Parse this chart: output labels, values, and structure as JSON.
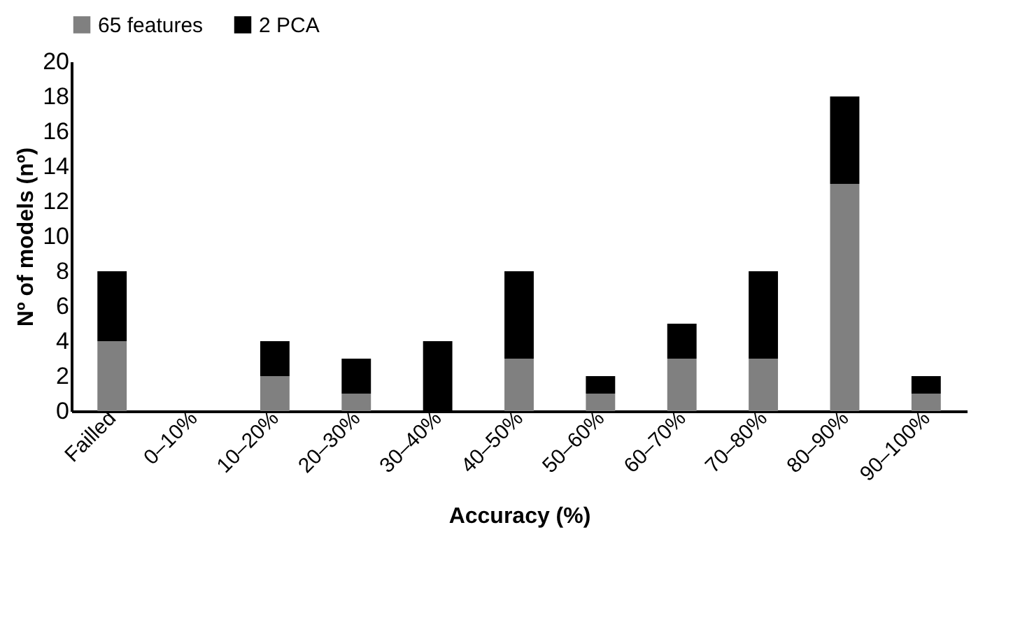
{
  "chart_data": {
    "type": "bar",
    "stacked": true,
    "xlabel": "Accuracy (%)",
    "ylabel": "Nº of models (nº)",
    "categories": [
      "Failled",
      "0–10%",
      "10–20%",
      "20–30%",
      "30–40%",
      "40–50%",
      "50–60%",
      "60–70%",
      "70–80%",
      "80–90%",
      "90–100%"
    ],
    "series": [
      {
        "name": "65 features",
        "color": "#808080",
        "values": [
          4,
          0,
          2,
          1,
          0,
          3,
          1,
          3,
          3,
          13,
          1
        ]
      },
      {
        "name": "2 PCA",
        "color": "#000000",
        "values": [
          4,
          0,
          2,
          2,
          4,
          5,
          1,
          2,
          5,
          5,
          1
        ]
      }
    ],
    "ylim": [
      0,
      20
    ],
    "yticks": [
      0,
      2,
      4,
      6,
      8,
      10,
      12,
      14,
      16,
      18,
      20
    ],
    "grid": false,
    "legend": "top"
  }
}
